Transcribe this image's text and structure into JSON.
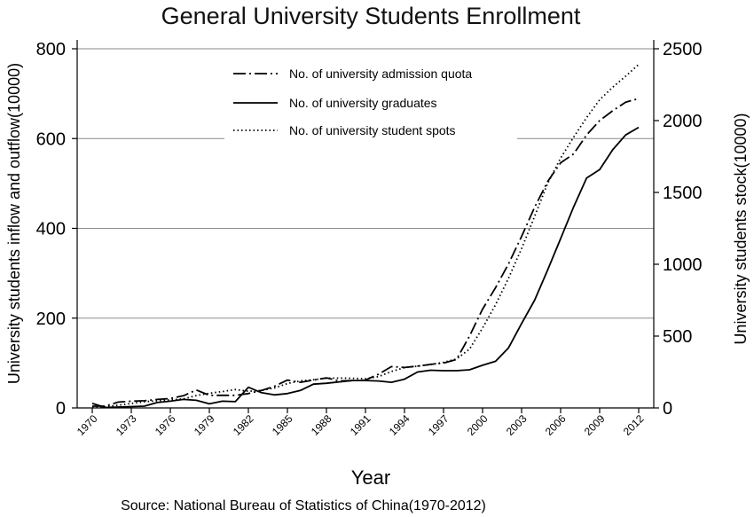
{
  "chart_data": {
    "type": "line",
    "title": "General University Students Enrollment",
    "xlabel": "Year",
    "ylabel_left": "University students inflow and outflow(10000)",
    "ylabel_right": "University students stock(10000)",
    "source": "Source: National Bureau of Statistics of China(1970-2012)",
    "x_ticks": [
      1970,
      1973,
      1976,
      1979,
      1982,
      1985,
      1988,
      1991,
      1994,
      1997,
      2000,
      2003,
      2006,
      2009,
      2012
    ],
    "y_left_ticks": [
      0,
      200,
      400,
      600,
      800
    ],
    "y_right_ticks": [
      0,
      500,
      1000,
      1500,
      2000,
      2500
    ],
    "xlim": [
      1970,
      2012
    ],
    "ylim_left": [
      0,
      800
    ],
    "ylim_right": [
      0,
      2500
    ],
    "grid": true,
    "legend_position": "top-center",
    "series": [
      {
        "name": "No. of university admission quota",
        "axis": "left",
        "style": "dashdot",
        "points": [
          [
            1970,
            4
          ],
          [
            1971,
            4
          ],
          [
            1972,
            13
          ],
          [
            1973,
            15
          ],
          [
            1974,
            16
          ],
          [
            1975,
            19
          ],
          [
            1976,
            21
          ],
          [
            1977,
            27
          ],
          [
            1978,
            40
          ],
          [
            1979,
            28
          ],
          [
            1980,
            28
          ],
          [
            1981,
            28
          ],
          [
            1982,
            32
          ],
          [
            1983,
            39
          ],
          [
            1984,
            48
          ],
          [
            1985,
            62
          ],
          [
            1986,
            57
          ],
          [
            1987,
            62
          ],
          [
            1988,
            67
          ],
          [
            1989,
            60
          ],
          [
            1990,
            61
          ],
          [
            1991,
            62
          ],
          [
            1992,
            75
          ],
          [
            1993,
            92
          ],
          [
            1994,
            90
          ],
          [
            1995,
            93
          ],
          [
            1996,
            97
          ],
          [
            1997,
            100
          ],
          [
            1998,
            108
          ],
          [
            1999,
            160
          ],
          [
            2000,
            220
          ],
          [
            2001,
            268
          ],
          [
            2002,
            321
          ],
          [
            2003,
            382
          ],
          [
            2004,
            447
          ],
          [
            2005,
            504
          ],
          [
            2006,
            546
          ],
          [
            2007,
            566
          ],
          [
            2008,
            608
          ],
          [
            2009,
            640
          ],
          [
            2010,
            662
          ],
          [
            2011,
            681
          ],
          [
            2012,
            689
          ]
        ]
      },
      {
        "name": "No. of university graduates",
        "axis": "left",
        "style": "solid",
        "points": [
          [
            1970,
            10
          ],
          [
            1971,
            1
          ],
          [
            1972,
            2
          ],
          [
            1973,
            3
          ],
          [
            1974,
            4
          ],
          [
            1975,
            12
          ],
          [
            1976,
            15
          ],
          [
            1977,
            19
          ],
          [
            1978,
            17
          ],
          [
            1979,
            9
          ],
          [
            1980,
            15
          ],
          [
            1981,
            14
          ],
          [
            1982,
            46
          ],
          [
            1983,
            34
          ],
          [
            1984,
            29
          ],
          [
            1985,
            32
          ],
          [
            1986,
            39
          ],
          [
            1987,
            53
          ],
          [
            1988,
            55
          ],
          [
            1989,
            58
          ],
          [
            1990,
            61
          ],
          [
            1991,
            61
          ],
          [
            1992,
            60
          ],
          [
            1993,
            57
          ],
          [
            1994,
            64
          ],
          [
            1995,
            80
          ],
          [
            1996,
            84
          ],
          [
            1997,
            83
          ],
          [
            1998,
            83
          ],
          [
            1999,
            85
          ],
          [
            2000,
            95
          ],
          [
            2001,
            104
          ],
          [
            2002,
            134
          ],
          [
            2003,
            188
          ],
          [
            2004,
            240
          ],
          [
            2005,
            307
          ],
          [
            2006,
            377
          ],
          [
            2007,
            448
          ],
          [
            2008,
            512
          ],
          [
            2009,
            531
          ],
          [
            2010,
            575
          ],
          [
            2011,
            608
          ],
          [
            2012,
            625
          ]
        ]
      },
      {
        "name": "No. of university student spots",
        "axis": "right",
        "style": "dotted",
        "points": [
          [
            1970,
            5
          ],
          [
            1971,
            8
          ],
          [
            1972,
            19
          ],
          [
            1973,
            31
          ],
          [
            1974,
            43
          ],
          [
            1975,
            50
          ],
          [
            1976,
            56
          ],
          [
            1977,
            63
          ],
          [
            1978,
            86
          ],
          [
            1979,
            102
          ],
          [
            1980,
            114
          ],
          [
            1981,
            128
          ],
          [
            1982,
            116
          ],
          [
            1983,
            121
          ],
          [
            1984,
            139
          ],
          [
            1985,
            170
          ],
          [
            1986,
            188
          ],
          [
            1987,
            196
          ],
          [
            1988,
            207
          ],
          [
            1989,
            208
          ],
          [
            1990,
            206
          ],
          [
            1991,
            204
          ],
          [
            1992,
            218
          ],
          [
            1993,
            254
          ],
          [
            1994,
            280
          ],
          [
            1995,
            291
          ],
          [
            1996,
            302
          ],
          [
            1997,
            317
          ],
          [
            1998,
            341
          ],
          [
            1999,
            409
          ],
          [
            2000,
            556
          ],
          [
            2001,
            719
          ],
          [
            2002,
            903
          ],
          [
            2003,
            1109
          ],
          [
            2004,
            1334
          ],
          [
            2005,
            1562
          ],
          [
            2006,
            1739
          ],
          [
            2007,
            1885
          ],
          [
            2008,
            2021
          ],
          [
            2009,
            2145
          ],
          [
            2010,
            2232
          ],
          [
            2011,
            2309
          ],
          [
            2012,
            2391
          ]
        ]
      }
    ]
  }
}
